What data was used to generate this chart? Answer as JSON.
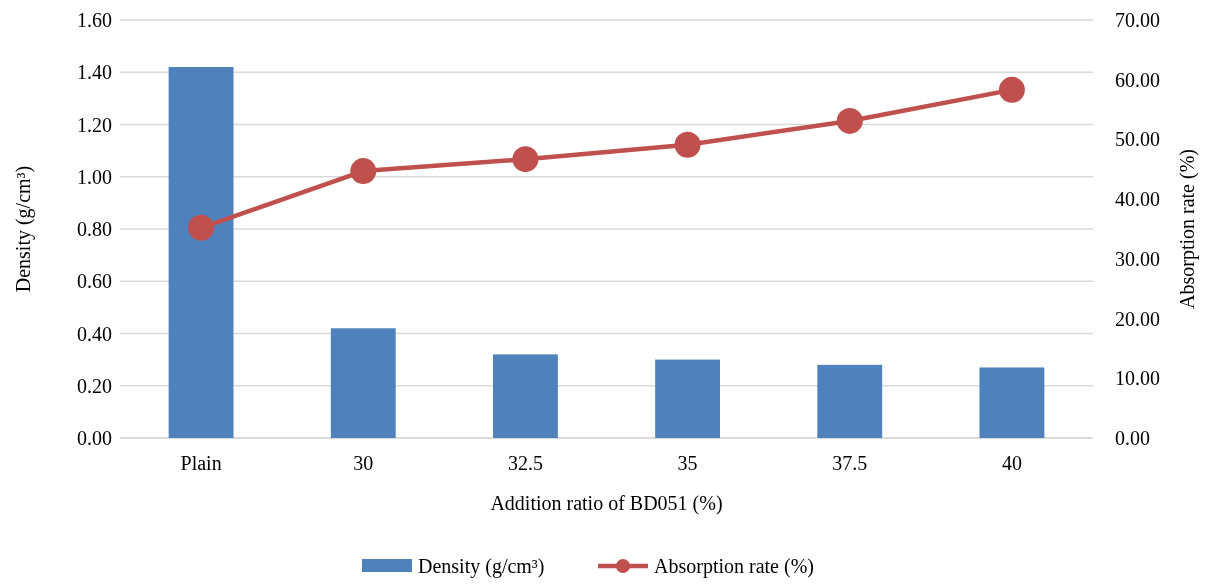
{
  "chart_data": {
    "type": "bar",
    "xlabel": "Addition ratio of BD051 (%)",
    "ylabel": "Density (g/cm³)",
    "y2label": "Absorption rate (%)",
    "categories": [
      "Plain",
      "30",
      "32.5",
      "35",
      "37.5",
      "40"
    ],
    "series": [
      {
        "name": "Density (g/cm³)",
        "color": "#4f81bd",
        "values": [
          1.42,
          0.42,
          0.32,
          0.3,
          0.28,
          0.27
        ]
      },
      {
        "name": "Absorption rate (%)",
        "type": "line",
        "axis": "y2",
        "color": "#c0504d",
        "marker": "circle",
        "values": [
          35.2,
          44.7,
          46.7,
          49.1,
          53.1,
          58.3
        ]
      }
    ],
    "ylim": [
      0,
      1.6
    ],
    "yticks": [
      {
        "value": 0,
        "label": "0.00"
      },
      {
        "value": 0.2,
        "label": "0.20"
      },
      {
        "value": 0.4,
        "label": "0.40"
      },
      {
        "value": 0.6,
        "label": "0.60"
      },
      {
        "value": 0.8,
        "label": "0.80"
      },
      {
        "value": 1.0,
        "label": "1.00"
      },
      {
        "value": 1.2,
        "label": "1.20"
      },
      {
        "value": 1.4,
        "label": "1.40"
      },
      {
        "value": 1.6,
        "label": "1.60"
      }
    ],
    "y2lim": [
      0,
      70
    ],
    "y2ticks": [
      {
        "value": 0,
        "label": "0.00"
      },
      {
        "value": 10,
        "label": "10.00"
      },
      {
        "value": 20,
        "label": "20.00"
      },
      {
        "value": 30,
        "label": "30.00"
      },
      {
        "value": 40,
        "label": "40.00"
      },
      {
        "value": 50,
        "label": "50.00"
      },
      {
        "value": 60,
        "label": "60.00"
      },
      {
        "value": 70,
        "label": "70.00"
      }
    ],
    "grid": "y",
    "legend": "bottom"
  }
}
